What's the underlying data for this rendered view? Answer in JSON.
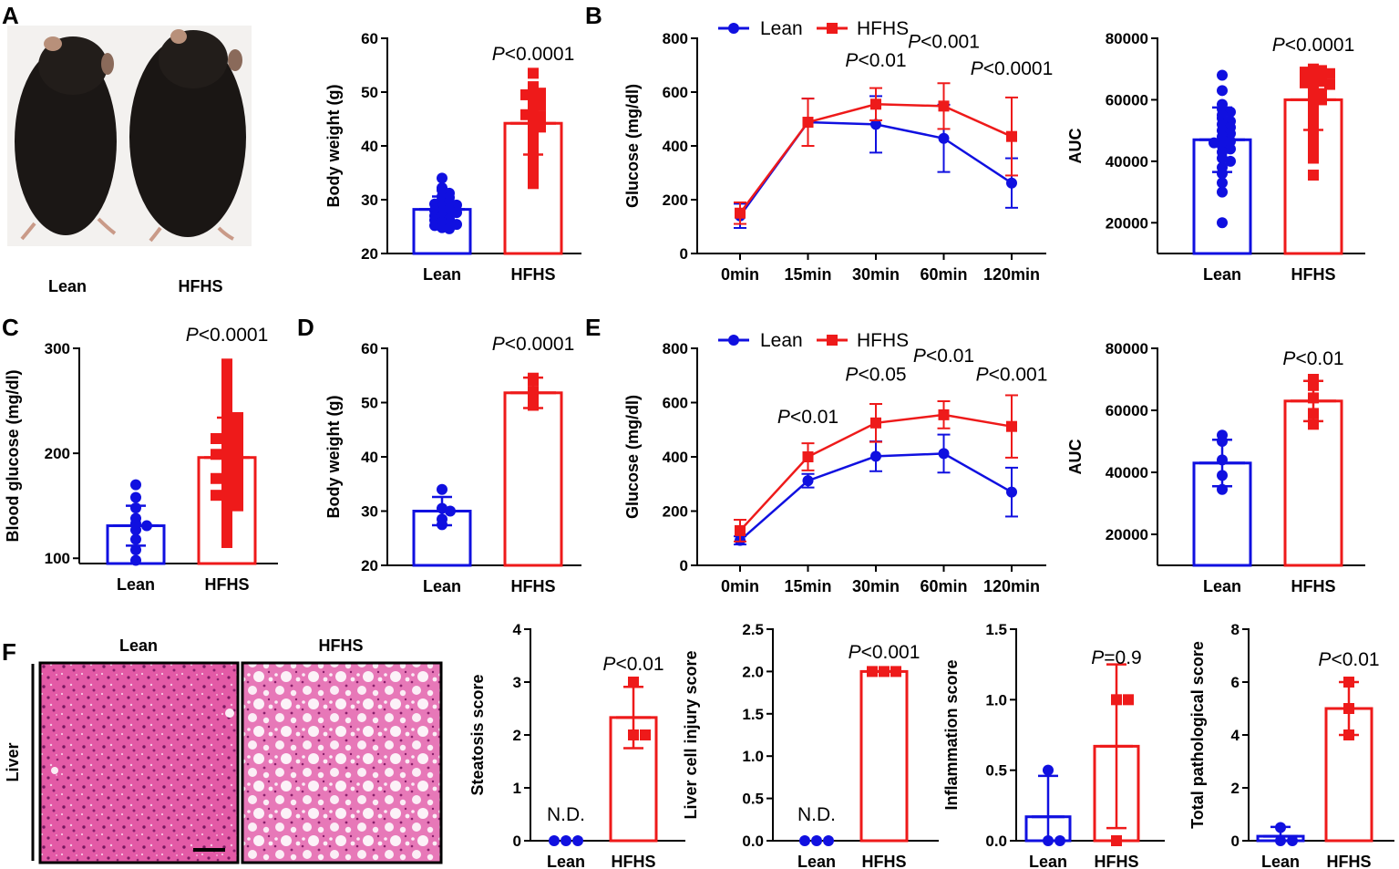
{
  "colors": {
    "lean": "#1010e0",
    "hfhs": "#ee1a1a",
    "axis": "#000000",
    "he_pink": "#e55aa8",
    "mouse_dark": "#1a1614",
    "photo_bg": "#f2f0ee"
  },
  "photo_a": {
    "letter": "A",
    "labels": [
      "Lean",
      "HFHS"
    ]
  },
  "histology": {
    "letter": "F",
    "row_label": "Liver",
    "col_labels": [
      "Lean",
      "HFHS"
    ]
  },
  "line_legend": [
    "Lean",
    "HFHS"
  ],
  "chart_data": [
    {
      "id": "a_body_weight",
      "type": "bar",
      "title": "",
      "xlabel": "",
      "ylabel": "Body weight (g)",
      "categories": [
        "Lean",
        "HFHS"
      ],
      "ylim": [
        20,
        60
      ],
      "yticks": [
        20,
        30,
        40,
        50,
        60
      ],
      "yticklabels": [
        "20",
        "30",
        "40",
        "50",
        "60"
      ],
      "means": [
        28.2,
        44.2
      ],
      "sd": [
        2.4,
        5.8
      ],
      "pvalue": "P<0.0001",
      "points": [
        [
          34.0,
          32.2,
          31.8,
          31.2,
          30.6,
          30.4,
          30.0,
          29.6,
          29.2,
          29.0,
          28.6,
          28.2,
          28.0,
          27.8,
          27.4,
          27.0,
          26.8,
          26.4,
          26.2,
          25.8,
          25.6,
          25.2,
          24.8,
          24.6,
          25.4,
          27.6
        ],
        [
          53.5,
          51.0,
          50.0,
          49.8,
          49.5,
          48.5,
          48.0,
          47.5,
          46.8,
          46.0,
          45.5,
          45.0,
          44.5,
          44.0,
          43.5,
          42.5,
          41.5,
          40.5,
          39.5,
          38.5,
          37.0,
          35.5,
          34.0,
          33.0,
          45.8,
          48.6
        ]
      ]
    },
    {
      "id": "b_gtt",
      "type": "line",
      "title": "",
      "xlabel": "",
      "ylabel": "Glucose (mg/dl)",
      "x": [
        "0min",
        "15min",
        "30min",
        "60min",
        "120min"
      ],
      "ylim": [
        0,
        800
      ],
      "yticks": [
        0,
        200,
        400,
        600,
        800
      ],
      "yticklabels": [
        "0",
        "200",
        "400",
        "600",
        "800"
      ],
      "series": [
        {
          "name": "Lean",
          "values": [
            140,
            488,
            480,
            428,
            262
          ],
          "sd": [
            45,
            88,
            105,
            125,
            92
          ]
        },
        {
          "name": "HFHS",
          "values": [
            150,
            488,
            555,
            548,
            435
          ],
          "sd": [
            40,
            88,
            60,
            85,
            145
          ]
        }
      ],
      "pvalues": [
        {
          "text": "P<0.01",
          "xi": 2,
          "y": 695
        },
        {
          "text": "P<0.001",
          "xi": 3,
          "y": 765
        },
        {
          "text": "P<0.0001",
          "xi": 4,
          "y": 665
        }
      ]
    },
    {
      "id": "b_auc",
      "type": "bar",
      "title": "",
      "xlabel": "",
      "ylabel": "AUC",
      "categories": [
        "Lean",
        "HFHS"
      ],
      "ylim": [
        10000,
        80000
      ],
      "yticks": [
        20000,
        40000,
        60000,
        80000
      ],
      "yticklabels": [
        "20000",
        "40000",
        "60000",
        "80000"
      ],
      "means": [
        47000,
        60000
      ],
      "sd": [
        10500,
        9800
      ],
      "pvalue": "P<0.0001",
      "points": [
        [
          68000,
          63000,
          58500,
          57000,
          56000,
          55000,
          54000,
          53000,
          52000,
          51000,
          50000,
          49000,
          48000,
          47000,
          46500,
          46000,
          45000,
          44000,
          43000,
          41000,
          40000,
          38000,
          36000,
          33000,
          30000,
          20000
        ],
        [
          70000,
          69500,
          69000,
          68500,
          68000,
          67500,
          67000,
          66500,
          66000,
          65500,
          65000,
          64000,
          63000,
          62000,
          61000,
          60000,
          58000,
          56000,
          54000,
          52000,
          50000,
          47000,
          45000,
          43000,
          41000,
          35500
        ]
      ]
    },
    {
      "id": "c_blood_glucose",
      "type": "bar",
      "title": "",
      "xlabel": "",
      "ylabel": "Blood glucose (mg/dl)",
      "categories": [
        "Lean",
        "HFHS"
      ],
      "ylim": [
        95,
        300
      ],
      "yticks": [
        100,
        200,
        300
      ],
      "yticklabels": [
        "100",
        "200",
        "300"
      ],
      "means": [
        131,
        196
      ],
      "sd": [
        19,
        38
      ],
      "pvalue": "P<0.0001",
      "points": [
        [
          170,
          158,
          148,
          138,
          133,
          131,
          127,
          118,
          108,
          98
        ],
        [
          285,
          278,
          271,
          266,
          261,
          255,
          250,
          246,
          242,
          238,
          234,
          231,
          228,
          225,
          222,
          219,
          216,
          213,
          210,
          207,
          204,
          201,
          198,
          195,
          192,
          189,
          186,
          183,
          180,
          177,
          174,
          171,
          168,
          165,
          162,
          159,
          156,
          153,
          150,
          146,
          142,
          138,
          134,
          128,
          122,
          115,
          199,
          176,
          160,
          226,
          214,
          188
        ]
      ]
    },
    {
      "id": "d_body_weight",
      "type": "bar",
      "title": "",
      "xlabel": "",
      "ylabel": "Body weight (g)",
      "categories": [
        "Lean",
        "HFHS"
      ],
      "ylim": [
        20,
        60
      ],
      "yticks": [
        20,
        30,
        40,
        50,
        60
      ],
      "yticklabels": [
        "20",
        "30",
        "40",
        "50",
        "60"
      ],
      "means": [
        30.0,
        51.8
      ],
      "sd": [
        2.6,
        2.8
      ],
      "pvalue": "P<0.0001",
      "points": [
        [
          34.0,
          30.5,
          30.0,
          28.5,
          27.5
        ],
        [
          54.5,
          54.0,
          52.0,
          50.5,
          49.5
        ]
      ]
    },
    {
      "id": "e_gtt",
      "type": "line",
      "title": "",
      "xlabel": "",
      "ylabel": "Glucose (mg/dl)",
      "x": [
        "0min",
        "15min",
        "30min",
        "60min",
        "120min"
      ],
      "ylim": [
        0,
        800
      ],
      "yticks": [
        0,
        200,
        400,
        600,
        800
      ],
      "yticklabels": [
        "0",
        "200",
        "400",
        "600",
        "800"
      ],
      "series": [
        {
          "name": "Lean",
          "values": [
            92,
            312,
            402,
            412,
            270
          ],
          "sd": [
            15,
            25,
            55,
            70,
            90
          ]
        },
        {
          "name": "HFHS",
          "values": [
            128,
            400,
            525,
            555,
            512
          ],
          "sd": [
            40,
            50,
            70,
            50,
            115
          ]
        }
      ],
      "pvalues": [
        {
          "text": "P<0.01",
          "xi": 1,
          "y": 525
        },
        {
          "text": "P<0.05",
          "xi": 2,
          "y": 680
        },
        {
          "text": "P<0.01",
          "xi": 3,
          "y": 750
        },
        {
          "text": "P<0.001",
          "xi": 4,
          "y": 680
        }
      ]
    },
    {
      "id": "e_auc",
      "type": "bar",
      "title": "",
      "xlabel": "",
      "ylabel": "AUC",
      "categories": [
        "Lean",
        "HFHS"
      ],
      "ylim": [
        10000,
        80000
      ],
      "yticks": [
        20000,
        40000,
        60000,
        80000
      ],
      "yticklabels": [
        "20000",
        "40000",
        "60000",
        "80000"
      ],
      "means": [
        43000,
        63000
      ],
      "sd": [
        7500,
        6500
      ],
      "pvalue": "P<0.01",
      "points": [
        [
          52000,
          50000,
          44000,
          39000,
          34500
        ],
        [
          70000,
          68000,
          64000,
          59000,
          55500
        ]
      ]
    },
    {
      "id": "f_steatosis",
      "type": "bar",
      "title": "",
      "xlabel": "",
      "ylabel": "Steatosis score",
      "categories": [
        "Lean",
        "HFHS"
      ],
      "ylim": [
        0,
        4
      ],
      "yticks": [
        0,
        1,
        2,
        3,
        4
      ],
      "yticklabels": [
        "0",
        "1",
        "2",
        "3",
        "4"
      ],
      "means": [
        0,
        2.33
      ],
      "sd": [
        0,
        0.58
      ],
      "pvalue": "P<0.01",
      "nd": "N.D.",
      "points": [
        [
          0,
          0,
          0
        ],
        [
          3,
          2,
          2
        ]
      ]
    },
    {
      "id": "f_injury",
      "type": "bar",
      "title": "",
      "xlabel": "",
      "ylabel": "Liver cell injury score",
      "categories": [
        "Lean",
        "HFHS"
      ],
      "ylim": [
        0,
        2.5
      ],
      "yticks": [
        0,
        0.5,
        1.0,
        1.5,
        2.0,
        2.5
      ],
      "yticklabels": [
        "0.0",
        "0.5",
        "1.0",
        "1.5",
        "2.0",
        "2.5"
      ],
      "means": [
        0,
        2.0
      ],
      "sd": [
        0,
        0
      ],
      "pvalue": "P<0.001",
      "nd": "N.D.",
      "points": [
        [
          0,
          0,
          0
        ],
        [
          2,
          2,
          2
        ]
      ]
    },
    {
      "id": "f_inflammation",
      "type": "bar",
      "title": "",
      "xlabel": "",
      "ylabel": "Inflammation score",
      "categories": [
        "Lean",
        "HFHS"
      ],
      "ylim": [
        0,
        1.5
      ],
      "yticks": [
        0,
        0.5,
        1.0,
        1.5
      ],
      "yticklabels": [
        "0.0",
        "0.5",
        "1.0",
        "1.5"
      ],
      "means": [
        0.17,
        0.67
      ],
      "sd": [
        0.29,
        0.58
      ],
      "pvalue": "P=0.9",
      "points": [
        [
          0.5,
          0,
          0
        ],
        [
          1,
          1,
          0
        ]
      ]
    },
    {
      "id": "f_total",
      "type": "bar",
      "title": "",
      "xlabel": "",
      "ylabel": "Total pathological score",
      "categories": [
        "Lean",
        "HFHS"
      ],
      "ylim": [
        0,
        8
      ],
      "yticks": [
        0,
        2,
        4,
        6,
        8
      ],
      "yticklabels": [
        "0",
        "2",
        "4",
        "6",
        "8"
      ],
      "means": [
        0.17,
        5.0
      ],
      "sd": [
        0.35,
        1.0
      ],
      "pvalue": "P<0.01",
      "points": [
        [
          0.5,
          0,
          0
        ],
        [
          6,
          5,
          4
        ]
      ]
    }
  ]
}
